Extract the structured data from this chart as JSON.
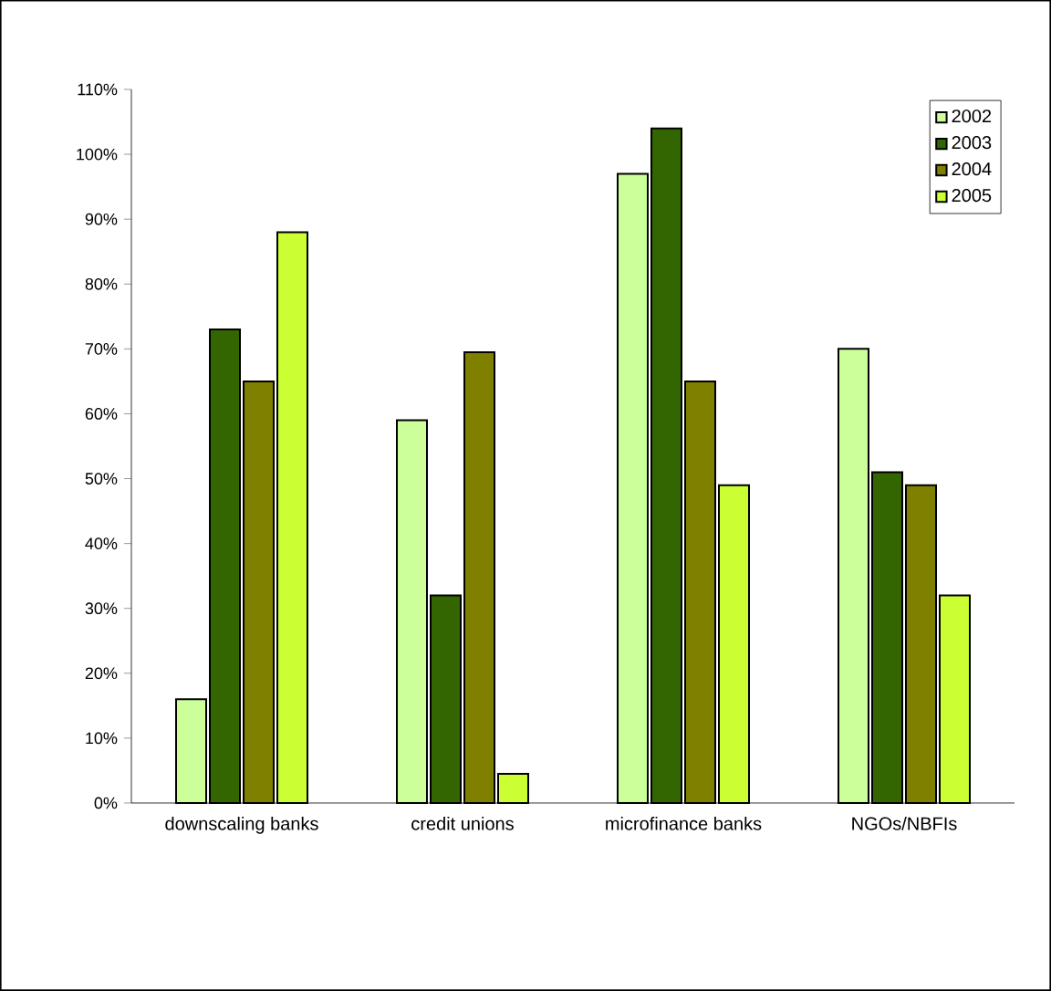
{
  "chart_data": {
    "type": "bar",
    "categories": [
      "downscaling banks",
      "credit unions",
      "microfinance banks",
      "NGOs/NBFIs"
    ],
    "series": [
      {
        "name": "2002",
        "color": "#ccff99",
        "values": [
          16,
          59,
          97,
          70
        ]
      },
      {
        "name": "2003",
        "color": "#336600",
        "values": [
          73,
          32,
          104,
          51
        ]
      },
      {
        "name": "2004",
        "color": "#808000",
        "values": [
          65,
          69.5,
          65,
          49
        ]
      },
      {
        "name": "2005",
        "color": "#ccff33",
        "values": [
          88,
          4.5,
          49,
          32
        ]
      }
    ],
    "ylim": [
      0,
      110
    ],
    "yticks": [
      {
        "value": 0,
        "label": "0%"
      },
      {
        "value": 10,
        "label": "10%"
      },
      {
        "value": 20,
        "label": "20%"
      },
      {
        "value": 30,
        "label": "30%"
      },
      {
        "value": 40,
        "label": "40%"
      },
      {
        "value": 50,
        "label": "50%"
      },
      {
        "value": 60,
        "label": "60%"
      },
      {
        "value": 70,
        "label": "70%"
      },
      {
        "value": 80,
        "label": "80%"
      },
      {
        "value": 90,
        "label": "90%"
      },
      {
        "value": 100,
        "label": "100%"
      },
      {
        "value": 110,
        "label": "110%"
      }
    ],
    "grid": false,
    "legend": "top right"
  }
}
